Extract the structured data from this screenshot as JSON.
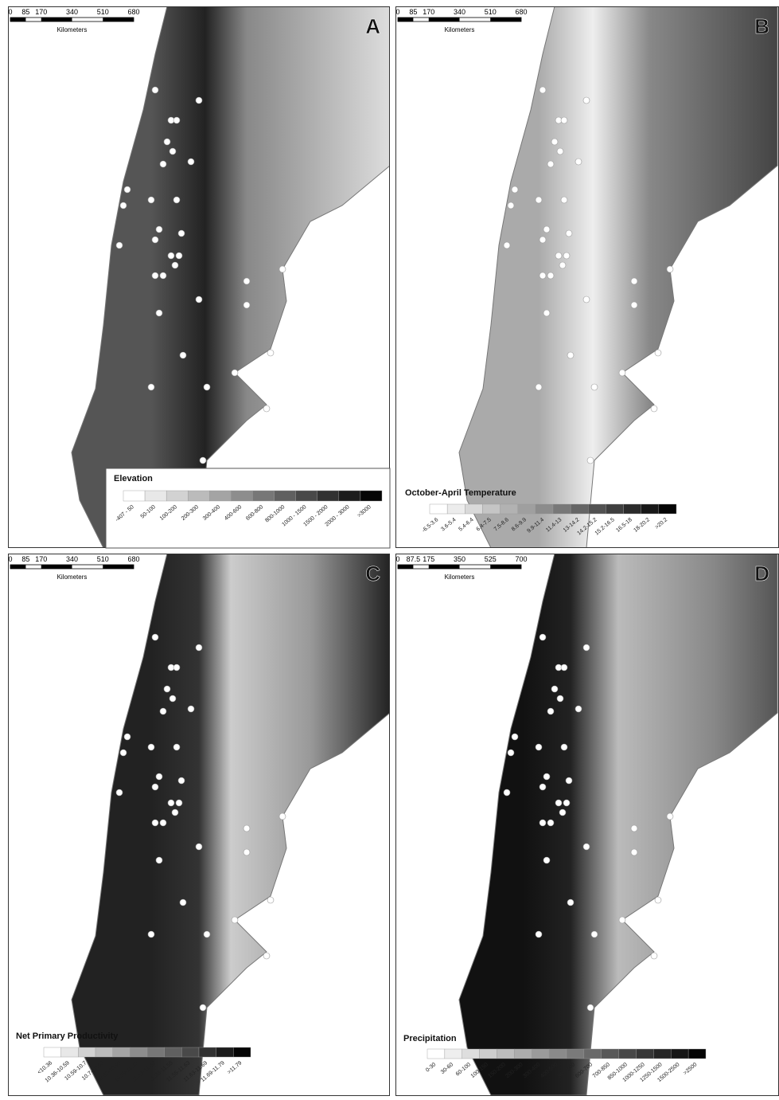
{
  "panels": [
    {
      "letter": "A",
      "scale": {
        "ticks": [
          "0",
          "85",
          "170",
          "340",
          "510",
          "680"
        ],
        "unit": "Kilometers"
      },
      "legend": {
        "title": "Elevation",
        "classes": [
          "-407 - 50",
          "50-100",
          "100-200",
          "200-300",
          "300-400",
          "400-600",
          "600-800",
          "800-1000",
          "1000 - 1500",
          "1500 - 2000",
          "2000 - 3000",
          ">3000"
        ]
      }
    },
    {
      "letter": "B",
      "scale": {
        "ticks": [
          "0",
          "85",
          "170",
          "340",
          "510",
          "680"
        ],
        "unit": "Kilometers"
      },
      "legend": {
        "title": "October-April Temperature",
        "classes": [
          "-6.5-3.6",
          "3.6-5.4",
          "5.4-6.4",
          "6.4-7.5",
          "7.5-8.6",
          "8.6-9.9",
          "9.9-11.4",
          "11.4-13",
          "13-14.2",
          "14.2-15.2",
          "15.2-16.5",
          "16.5-18",
          "18-20.2",
          ">20.2"
        ]
      }
    },
    {
      "letter": "C",
      "scale": {
        "ticks": [
          "0",
          "85",
          "170",
          "340",
          "510",
          "680"
        ],
        "unit": "Kilometers"
      },
      "legend": {
        "title": "Net Primary Productivity",
        "classes": [
          "<10.36",
          "10.36-10.59",
          "10.59-10.7",
          "10.7-10.83",
          "10.83-10.99",
          "10.99-11.13",
          "11.13-11.33",
          "11.33-11.55",
          "11.55-11.63",
          "11.63-11.69",
          "11.69-11.79",
          ">11.79"
        ]
      }
    },
    {
      "letter": "D",
      "scale": {
        "ticks": [
          "0",
          "87.5",
          "175",
          "350",
          "525",
          "700"
        ],
        "unit": "Kilometers"
      },
      "legend": {
        "title": "Precipitation",
        "classes": [
          "0-30",
          "30-60",
          "60-100",
          "100-150",
          "150-200",
          "200-300",
          "300-400",
          "400-500",
          "500-600",
          "600-700",
          "700-850",
          "850-1000",
          "1000-1250",
          "1250-1500",
          "1500-2500",
          ">2500"
        ]
      }
    }
  ]
}
